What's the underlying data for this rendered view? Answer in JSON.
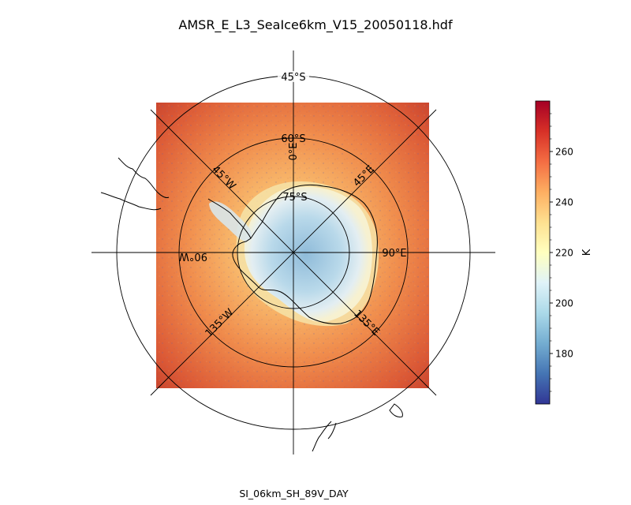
{
  "figure": {
    "title": "AMSR_E_L3_SeaIce6km_V15_20050118.hdf",
    "xlabel": "SI_06km_SH_89V_DAY"
  },
  "map": {
    "projection": "south-polar-stereographic",
    "parallels": [
      {
        "label": "45°S"
      },
      {
        "label": "60°S"
      },
      {
        "label": "75°S"
      }
    ],
    "meridians": [
      {
        "label": "0°E"
      },
      {
        "label": "45°E"
      },
      {
        "label": "90°E"
      },
      {
        "label": "135°E"
      },
      {
        "label": "45°W"
      },
      {
        "label": "90°W"
      },
      {
        "label": "135°W"
      }
    ]
  },
  "colorbar": {
    "label": "K",
    "colormap": "RdYlBu_r",
    "range": [
      160,
      280
    ],
    "ticks": [
      {
        "value": 180,
        "label": "180"
      },
      {
        "value": 200,
        "label": "200"
      },
      {
        "value": 220,
        "label": "220"
      },
      {
        "value": 240,
        "label": "240"
      },
      {
        "value": 260,
        "label": "260"
      }
    ]
  },
  "colors": {
    "ocean_warm": "#e8653a",
    "ocean_mid": "#f4a05a",
    "ice_cold": "#a8cde2",
    "ice_deep": "#6d9dc8"
  }
}
